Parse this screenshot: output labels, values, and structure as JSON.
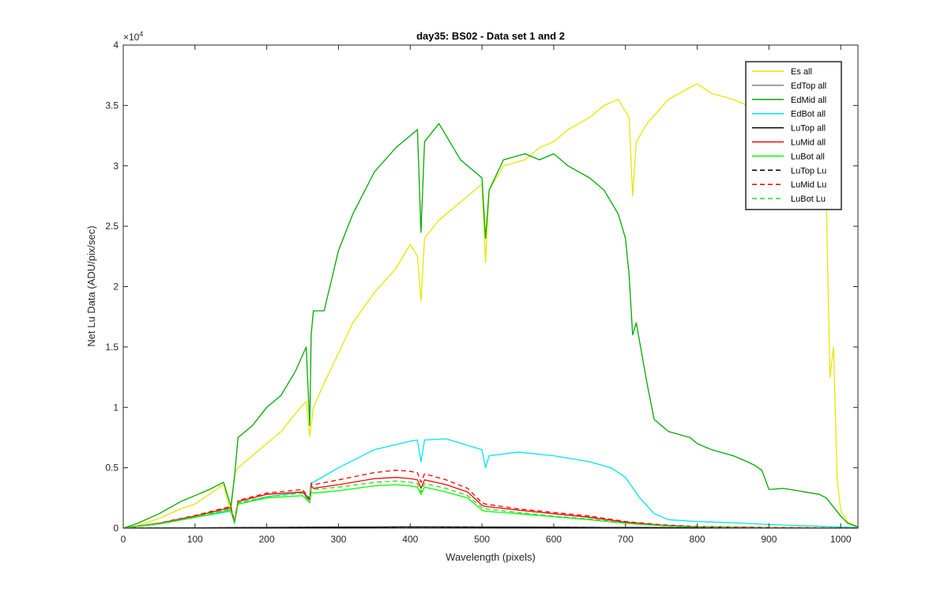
{
  "chart_data": {
    "type": "line",
    "title": "day35: BS02 - Data set 1 and 2",
    "xlabel": "Wavelength (pixels)",
    "ylabel": "Net Lu Data (ADU/pix/sec)",
    "xlim": [
      0,
      1024
    ],
    "ylim": [
      0,
      40000
    ],
    "exponent_label": "×10",
    "exponent_power": "4",
    "x_ticks": [
      0,
      100,
      200,
      300,
      400,
      500,
      600,
      700,
      800,
      900,
      1000
    ],
    "x_tick_labels": [
      "0",
      "100",
      "200",
      "300",
      "400",
      "500",
      "600",
      "700",
      "800",
      "900",
      "1000"
    ],
    "y_ticks": [
      0,
      5000,
      10000,
      15000,
      20000,
      25000,
      30000,
      35000,
      40000
    ],
    "y_tick_labels": [
      "0",
      "0.5",
      "1",
      "1.5",
      "2",
      "2.5",
      "3",
      "3.5",
      "4"
    ],
    "grid": false,
    "legend_position": "top-right",
    "series": [
      {
        "name": "Es  all",
        "color": "#e6e600",
        "dash": "solid",
        "x": [
          0,
          20,
          50,
          80,
          100,
          120,
          140,
          150,
          155,
          160,
          180,
          200,
          220,
          240,
          255,
          260,
          262,
          265,
          280,
          300,
          320,
          350,
          380,
          400,
          410,
          415,
          420,
          440,
          470,
          500,
          505,
          510,
          530,
          560,
          580,
          600,
          620,
          650,
          670,
          690,
          705,
          710,
          715,
          730,
          760,
          790,
          800,
          820,
          850,
          870,
          880,
          900,
          920,
          950,
          970,
          980,
          985,
          990,
          995,
          1000,
          1010,
          1024
        ],
        "y": [
          0,
          200,
          800,
          1600,
          2000,
          2800,
          3600,
          1200,
          4500,
          5000,
          6000,
          7000,
          8000,
          9500,
          10500,
          7600,
          8500,
          10000,
          12000,
          14500,
          17000,
          19500,
          21500,
          23500,
          22500,
          18800,
          24000,
          25500,
          27000,
          28500,
          22000,
          28000,
          30000,
          30500,
          31500,
          32000,
          33000,
          34000,
          35000,
          35500,
          34000,
          27500,
          32000,
          33500,
          35500,
          36500,
          36800,
          36000,
          35500,
          35000,
          36500,
          35000,
          36000,
          35500,
          30000,
          27000,
          12500,
          15000,
          4000,
          1500,
          500,
          100
        ]
      },
      {
        "name": "EdTop  all",
        "color": "#808080",
        "dash": "solid",
        "x": [
          0,
          100,
          200,
          300,
          400,
          500,
          600,
          700,
          800,
          900,
          1024
        ],
        "y": [
          0,
          30,
          60,
          80,
          100,
          90,
          70,
          50,
          30,
          15,
          5
        ]
      },
      {
        "name": "EdMid  all",
        "color": "#00aa00",
        "dash": "solid",
        "x": [
          0,
          20,
          50,
          80,
          100,
          120,
          140,
          150,
          155,
          160,
          180,
          200,
          220,
          240,
          255,
          260,
          262,
          265,
          280,
          300,
          320,
          350,
          380,
          400,
          410,
          415,
          420,
          440,
          470,
          500,
          505,
          510,
          530,
          560,
          580,
          600,
          620,
          650,
          670,
          690,
          700,
          705,
          710,
          715,
          730,
          740,
          760,
          790,
          800,
          820,
          850,
          870,
          880,
          890,
          900,
          920,
          950,
          970,
          980,
          1000,
          1010,
          1024
        ],
        "y": [
          0,
          400,
          1200,
          2200,
          2700,
          3200,
          3800,
          1800,
          4200,
          7500,
          8500,
          10000,
          11000,
          13000,
          15000,
          8500,
          16000,
          18000,
          18000,
          23000,
          26000,
          29500,
          31500,
          32500,
          33000,
          24500,
          32000,
          33500,
          30500,
          29000,
          24000,
          28000,
          30500,
          31000,
          30500,
          31000,
          30000,
          29000,
          28000,
          26000,
          24000,
          21000,
          16000,
          17000,
          12000,
          9000,
          8000,
          7500,
          7000,
          6500,
          6000,
          5500,
          5200,
          4800,
          3200,
          3300,
          3000,
          2800,
          2500,
          1000,
          400,
          100
        ]
      },
      {
        "name": "EdBot  all",
        "color": "#00e5ee",
        "dash": "solid",
        "x": [
          0,
          50,
          100,
          150,
          155,
          160,
          200,
          250,
          260,
          262,
          265,
          300,
          350,
          400,
          410,
          415,
          420,
          450,
          500,
          505,
          510,
          550,
          600,
          650,
          680,
          700,
          720,
          740,
          760,
          800,
          850,
          900,
          950,
          1000,
          1024
        ],
        "y": [
          0,
          400,
          900,
          1400,
          500,
          2000,
          2600,
          3000,
          2500,
          3800,
          3800,
          5000,
          6500,
          7200,
          7300,
          5500,
          7300,
          7400,
          6500,
          5000,
          6000,
          6300,
          6000,
          5500,
          5000,
          4200,
          2500,
          1200,
          700,
          550,
          450,
          300,
          200,
          100,
          50
        ]
      },
      {
        "name": "LuTop  all",
        "color": "#000000",
        "dash": "solid",
        "x": [
          0,
          100,
          200,
          300,
          400,
          500,
          600,
          700,
          800,
          900,
          1024
        ],
        "y": [
          0,
          20,
          50,
          80,
          100,
          90,
          70,
          50,
          30,
          15,
          5
        ]
      },
      {
        "name": "LuMid  all",
        "color": "#ff0000",
        "dash": "solid",
        "x": [
          0,
          50,
          100,
          150,
          155,
          160,
          200,
          250,
          260,
          262,
          265,
          300,
          350,
          380,
          400,
          410,
          415,
          420,
          450,
          480,
          500,
          505,
          550,
          600,
          650,
          700,
          750,
          800,
          900,
          1024
        ],
        "y": [
          0,
          400,
          1000,
          1700,
          500,
          2200,
          2800,
          3000,
          2300,
          3500,
          3300,
          3600,
          4100,
          4200,
          4100,
          4000,
          3300,
          4000,
          3600,
          3000,
          1900,
          1800,
          1500,
          1200,
          900,
          500,
          250,
          120,
          50,
          10
        ]
      },
      {
        "name": "LuBot  all",
        "color": "#00ff00",
        "dash": "solid",
        "x": [
          0,
          50,
          100,
          150,
          155,
          160,
          200,
          250,
          260,
          262,
          265,
          300,
          350,
          380,
          400,
          410,
          415,
          420,
          450,
          480,
          500,
          505,
          550,
          600,
          650,
          700,
          750,
          800,
          900,
          1024
        ],
        "y": [
          0,
          350,
          900,
          1500,
          400,
          2000,
          2500,
          2700,
          2100,
          3000,
          2900,
          3100,
          3500,
          3600,
          3500,
          3400,
          2800,
          3400,
          3000,
          2500,
          1500,
          1400,
          1200,
          950,
          700,
          400,
          200,
          100,
          40,
          8
        ]
      },
      {
        "name": "LuTop  Lu",
        "color": "#000000",
        "dash": "dashed",
        "x": [
          0,
          100,
          200,
          300,
          400,
          500,
          600,
          700,
          800,
          900,
          1024
        ],
        "y": [
          0,
          20,
          50,
          80,
          100,
          90,
          70,
          50,
          30,
          15,
          5
        ]
      },
      {
        "name": "LuMid  Lu",
        "color": "#ff0000",
        "dash": "dashed",
        "x": [
          0,
          50,
          100,
          150,
          155,
          160,
          200,
          250,
          260,
          262,
          265,
          300,
          350,
          380,
          400,
          410,
          415,
          420,
          450,
          480,
          500,
          505,
          550,
          600,
          650,
          700,
          750,
          800,
          900,
          1024
        ],
        "y": [
          0,
          420,
          1050,
          1800,
          550,
          2300,
          2900,
          3200,
          2400,
          3700,
          3600,
          4000,
          4600,
          4800,
          4700,
          4600,
          3800,
          4500,
          4000,
          3300,
          2100,
          2000,
          1600,
          1300,
          1000,
          550,
          280,
          130,
          60,
          10
        ]
      },
      {
        "name": "LuBot  Lu",
        "color": "#22dd22",
        "dash": "dashed",
        "x": [
          0,
          50,
          100,
          150,
          155,
          160,
          200,
          250,
          260,
          262,
          265,
          300,
          350,
          380,
          400,
          410,
          415,
          420,
          450,
          480,
          500,
          505,
          550,
          600,
          650,
          700,
          750,
          800,
          900,
          1024
        ],
        "y": [
          0,
          380,
          950,
          1600,
          450,
          2100,
          2600,
          2900,
          2200,
          3300,
          3200,
          3400,
          3800,
          3900,
          3800,
          3700,
          3000,
          3700,
          3300,
          2700,
          1700,
          1600,
          1300,
          1000,
          750,
          430,
          220,
          110,
          45,
          8
        ]
      }
    ]
  }
}
